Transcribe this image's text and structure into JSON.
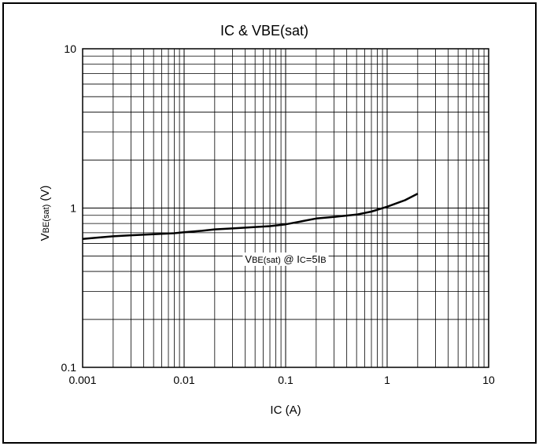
{
  "chart_data": {
    "type": "line",
    "title": "IC & VBE(sat)",
    "xlabel": "IC (A)",
    "ylabel_main": "V",
    "ylabel_sub": "BE(sat)",
    "ylabel_unit": "(V)",
    "x_scale": "log",
    "y_scale": "log",
    "xlim": [
      0.001,
      10
    ],
    "ylim": [
      0.1,
      10
    ],
    "x_ticks": [
      "0.001",
      "0.01",
      "0.1",
      "1",
      "10"
    ],
    "y_ticks": [
      "0.1",
      "1",
      "10"
    ],
    "grid": true,
    "annotation": {
      "parts": [
        "V",
        "BE(sat)",
        " @ I",
        "C",
        "=5I",
        "B"
      ]
    },
    "series": [
      {
        "x": [
          0.001,
          0.0015,
          0.002,
          0.003,
          0.005,
          0.008,
          0.01,
          0.015,
          0.02,
          0.03,
          0.05,
          0.07,
          0.1,
          0.15,
          0.2,
          0.3,
          0.5,
          0.7,
          1.0,
          1.5,
          2.0
        ],
        "y": [
          0.64,
          0.655,
          0.665,
          0.675,
          0.685,
          0.695,
          0.705,
          0.72,
          0.735,
          0.745,
          0.76,
          0.77,
          0.79,
          0.83,
          0.86,
          0.88,
          0.91,
          0.95,
          1.02,
          1.12,
          1.23
        ]
      }
    ]
  }
}
